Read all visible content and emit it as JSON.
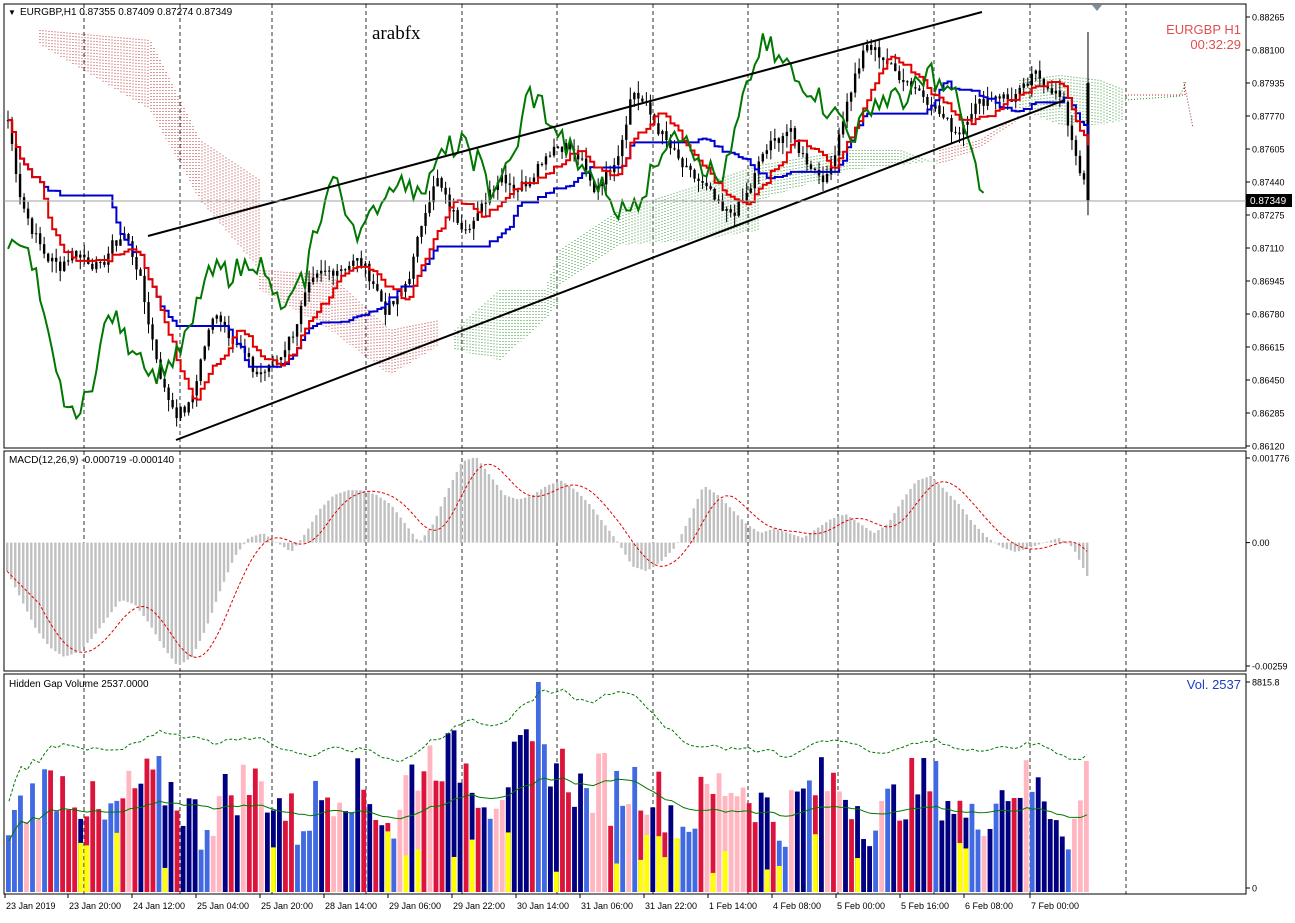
{
  "main_panel": {
    "header": "EURGBP,H1  0.87355 0.87409 0.87274 0.87349",
    "watermark": "arabfx",
    "symbol_label": "EURGBP  H1",
    "countdown": "00:32:29",
    "current_price": "0.87349",
    "price_ticks": [
      "0.88265",
      "0.88100",
      "0.87935",
      "0.87770",
      "0.87605",
      "0.87440",
      "0.87275",
      "0.87110",
      "0.86945",
      "0.86780",
      "0.86615",
      "0.86450",
      "0.86285",
      "0.86120"
    ]
  },
  "macd_panel": {
    "header": "MACD(12,26,9) -0.000719 -0.000140",
    "ticks": [
      "0.001776",
      "0.00",
      "-0.00259"
    ]
  },
  "volume_panel": {
    "header": "Hidden Gap Volume 2537.0000",
    "vol_label": "Vol.  2537",
    "ticks": [
      "8815.8",
      "0"
    ]
  },
  "time_axis": [
    "23 Jan 2019",
    "23 Jan 20:00",
    "24 Jan 12:00",
    "25 Jan 04:00",
    "25 Jan 20:00",
    "28 Jan 14:00",
    "29 Jan 06:00",
    "29 Jan 22:00",
    "30 Jan 14:00",
    "31 Jan 06:00",
    "31 Jan 22:00",
    "1 Feb 14:00",
    "4 Feb 08:00",
    "5 Feb 00:00",
    "5 Feb 16:00",
    "6 Feb 08:00",
    "7 Feb 00:00"
  ],
  "colors": {
    "kijun": "#0000cc",
    "tenkan": "#e00000",
    "chikou": "#007700",
    "cloud_bear": "#b22222",
    "cloud_bull": "#228b22",
    "macd_hist": "#c0c0c0",
    "signal": "#e00000",
    "vol_navy": "#000080",
    "vol_blue": "#4169e1",
    "vol_red": "#dc143c",
    "vol_pink": "#ffb6c1",
    "vol_yellow": "#ffff00"
  },
  "chart_data": [
    {
      "type": "candlestick",
      "symbol": "EURGBP",
      "timeframe": "H1",
      "ylim": [
        0.8612,
        0.88265
      ],
      "last_close": 0.87349,
      "close_path": [
        0.8775,
        0.8735,
        0.8718,
        0.8706,
        0.8702,
        0.8709,
        0.8706,
        0.87,
        0.8712,
        0.8718,
        0.87,
        0.8668,
        0.864,
        0.8628,
        0.8632,
        0.866,
        0.868,
        0.8668,
        0.866,
        0.8648,
        0.865,
        0.8658,
        0.867,
        0.869,
        0.8698,
        0.87,
        0.8702,
        0.8705,
        0.8695,
        0.868,
        0.8685,
        0.87,
        0.873,
        0.8745,
        0.873,
        0.8722,
        0.8725,
        0.874,
        0.8748,
        0.874,
        0.8745,
        0.8755,
        0.8762,
        0.8762,
        0.8755,
        0.874,
        0.8748,
        0.876,
        0.879,
        0.8782,
        0.877,
        0.876,
        0.875,
        0.8745,
        0.8738,
        0.8728,
        0.873,
        0.874,
        0.8758,
        0.8765,
        0.877,
        0.8758,
        0.875,
        0.8745,
        0.8772,
        0.8795,
        0.8812,
        0.8808,
        0.88,
        0.8795,
        0.879,
        0.8783,
        0.8775,
        0.8768,
        0.878,
        0.8785,
        0.8788,
        0.8785,
        0.879,
        0.8798,
        0.8792,
        0.8785,
        0.876,
        0.8735
      ]
    },
    {
      "type": "bar",
      "name": "MACD(12,26,9)",
      "ylim": [
        -0.00259,
        0.001776
      ],
      "values": [
        -0.0006,
        -0.0012,
        -0.0018,
        -0.0022,
        -0.0024,
        -0.0023,
        -0.002,
        -0.0016,
        -0.0012,
        -0.0013,
        -0.0017,
        -0.0022,
        -0.0026,
        -0.0024,
        -0.0018,
        -0.001,
        -0.0003,
        0.0001,
        0.0002,
        0.0,
        -0.0002,
        0.0002,
        0.0007,
        0.001,
        0.0011,
        0.0011,
        0.001,
        0.0008,
        0.0004,
        0.0,
        0.0004,
        0.0011,
        0.0017,
        0.0018,
        0.0014,
        0.001,
        0.0009,
        0.001,
        0.0012,
        0.0013,
        0.0011,
        0.0008,
        0.0004,
        0.0,
        -0.0005,
        -0.0006,
        -0.0004,
        -0.0001,
        0.0005,
        0.0012,
        0.001,
        0.0007,
        0.0004,
        0.0002,
        0.0003,
        0.0002,
        0.0001,
        0.0003,
        0.0005,
        0.0006,
        0.0004,
        0.0002,
        0.0004,
        0.0009,
        0.0013,
        0.0014,
        0.0011,
        0.0008,
        0.0004,
        0.0001,
        -0.0001,
        -0.0002,
        -0.0001,
        0.0,
        0.0001,
        -0.0001,
        -0.0007
      ]
    },
    {
      "type": "bar",
      "name": "Hidden Gap Volume",
      "ylim": [
        0,
        8815.8
      ],
      "last_value": 2537
    }
  ]
}
